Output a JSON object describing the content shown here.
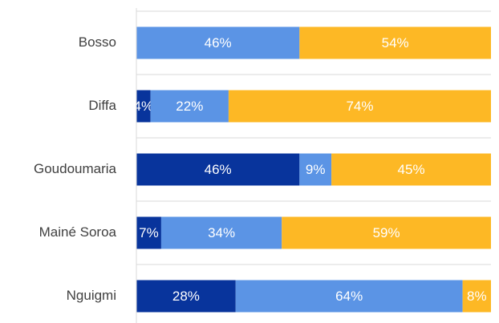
{
  "chart_data": {
    "type": "stacked-bar-horizontal",
    "categories": [
      "Bosso",
      "Diffa",
      "Goudoumaria",
      "Mainé Soroa",
      "Nguigmi"
    ],
    "xlim": [
      0,
      100
    ],
    "series": [
      {
        "color": "#08349c",
        "values": [
          0,
          4,
          46,
          7,
          28
        ],
        "value_labels": [
          null,
          "4%",
          "46%",
          "7%",
          "28%"
        ]
      },
      {
        "color": "#5b94e5",
        "values": [
          46,
          22,
          9,
          34,
          64
        ],
        "value_labels": [
          "46%",
          "22%",
          "9%",
          "34%",
          "64%"
        ]
      },
      {
        "color": "#fdb825",
        "values": [
          54,
          74,
          45,
          59,
          8
        ],
        "value_labels": [
          "54%",
          "74%",
          "45%",
          "59%",
          "8%"
        ]
      }
    ]
  }
}
